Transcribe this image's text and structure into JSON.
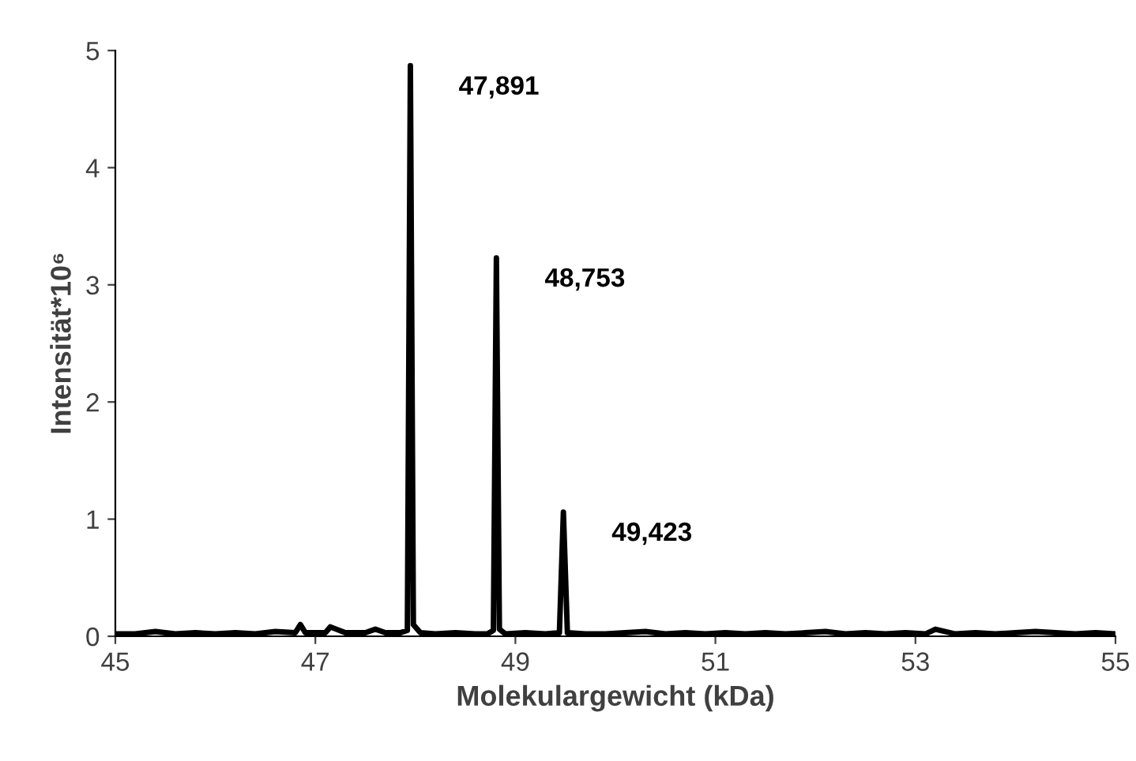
{
  "chart_data": {
    "type": "line",
    "xlabel": "Molekulargewicht (kDa)",
    "ylabel": "Intensität*10⁶",
    "xlim": [
      45,
      55
    ],
    "xticks": [
      45,
      47,
      49,
      51,
      53,
      55
    ],
    "ylim": [
      0,
      5
    ],
    "yticks": [
      0,
      1,
      2,
      3,
      4,
      5
    ],
    "grid": false,
    "legend": false,
    "marker": "none",
    "line_style": "solid",
    "series": [
      {
        "color": "#000000",
        "x": [
          45.0,
          45.2,
          45.4,
          45.6,
          45.8,
          46.0,
          46.2,
          46.4,
          46.6,
          46.8,
          46.85,
          46.9,
          47.1,
          47.15,
          47.3,
          47.5,
          47.6,
          47.7,
          47.85,
          47.92,
          47.95,
          47.98,
          48.05,
          48.2,
          48.4,
          48.6,
          48.72,
          48.78,
          48.81,
          48.84,
          48.9,
          49.1,
          49.3,
          49.44,
          49.48,
          49.52,
          49.7,
          49.9,
          50.1,
          50.3,
          50.5,
          50.7,
          50.9,
          51.1,
          51.3,
          51.5,
          51.7,
          51.9,
          52.1,
          52.3,
          52.5,
          52.7,
          52.9,
          53.1,
          53.2,
          53.4,
          53.6,
          53.8,
          54.0,
          54.2,
          54.4,
          54.6,
          54.8,
          55.0
        ],
        "values": [
          0.02,
          0.02,
          0.04,
          0.02,
          0.03,
          0.02,
          0.03,
          0.02,
          0.04,
          0.03,
          0.1,
          0.03,
          0.03,
          0.08,
          0.03,
          0.03,
          0.06,
          0.03,
          0.03,
          0.05,
          4.87,
          0.1,
          0.03,
          0.02,
          0.03,
          0.02,
          0.02,
          0.05,
          3.23,
          0.06,
          0.02,
          0.03,
          0.02,
          0.03,
          1.06,
          0.03,
          0.02,
          0.02,
          0.03,
          0.04,
          0.02,
          0.03,
          0.02,
          0.03,
          0.02,
          0.03,
          0.02,
          0.03,
          0.04,
          0.02,
          0.03,
          0.02,
          0.03,
          0.02,
          0.06,
          0.02,
          0.03,
          0.02,
          0.03,
          0.04,
          0.03,
          0.02,
          0.03,
          0.02
        ]
      }
    ],
    "annotations": [
      {
        "text": "47,891",
        "x": 47.95,
        "y": 4.87
      },
      {
        "text": "48,753",
        "x": 48.81,
        "y": 3.23
      },
      {
        "text": "49,423",
        "x": 49.48,
        "y": 1.06
      }
    ]
  }
}
